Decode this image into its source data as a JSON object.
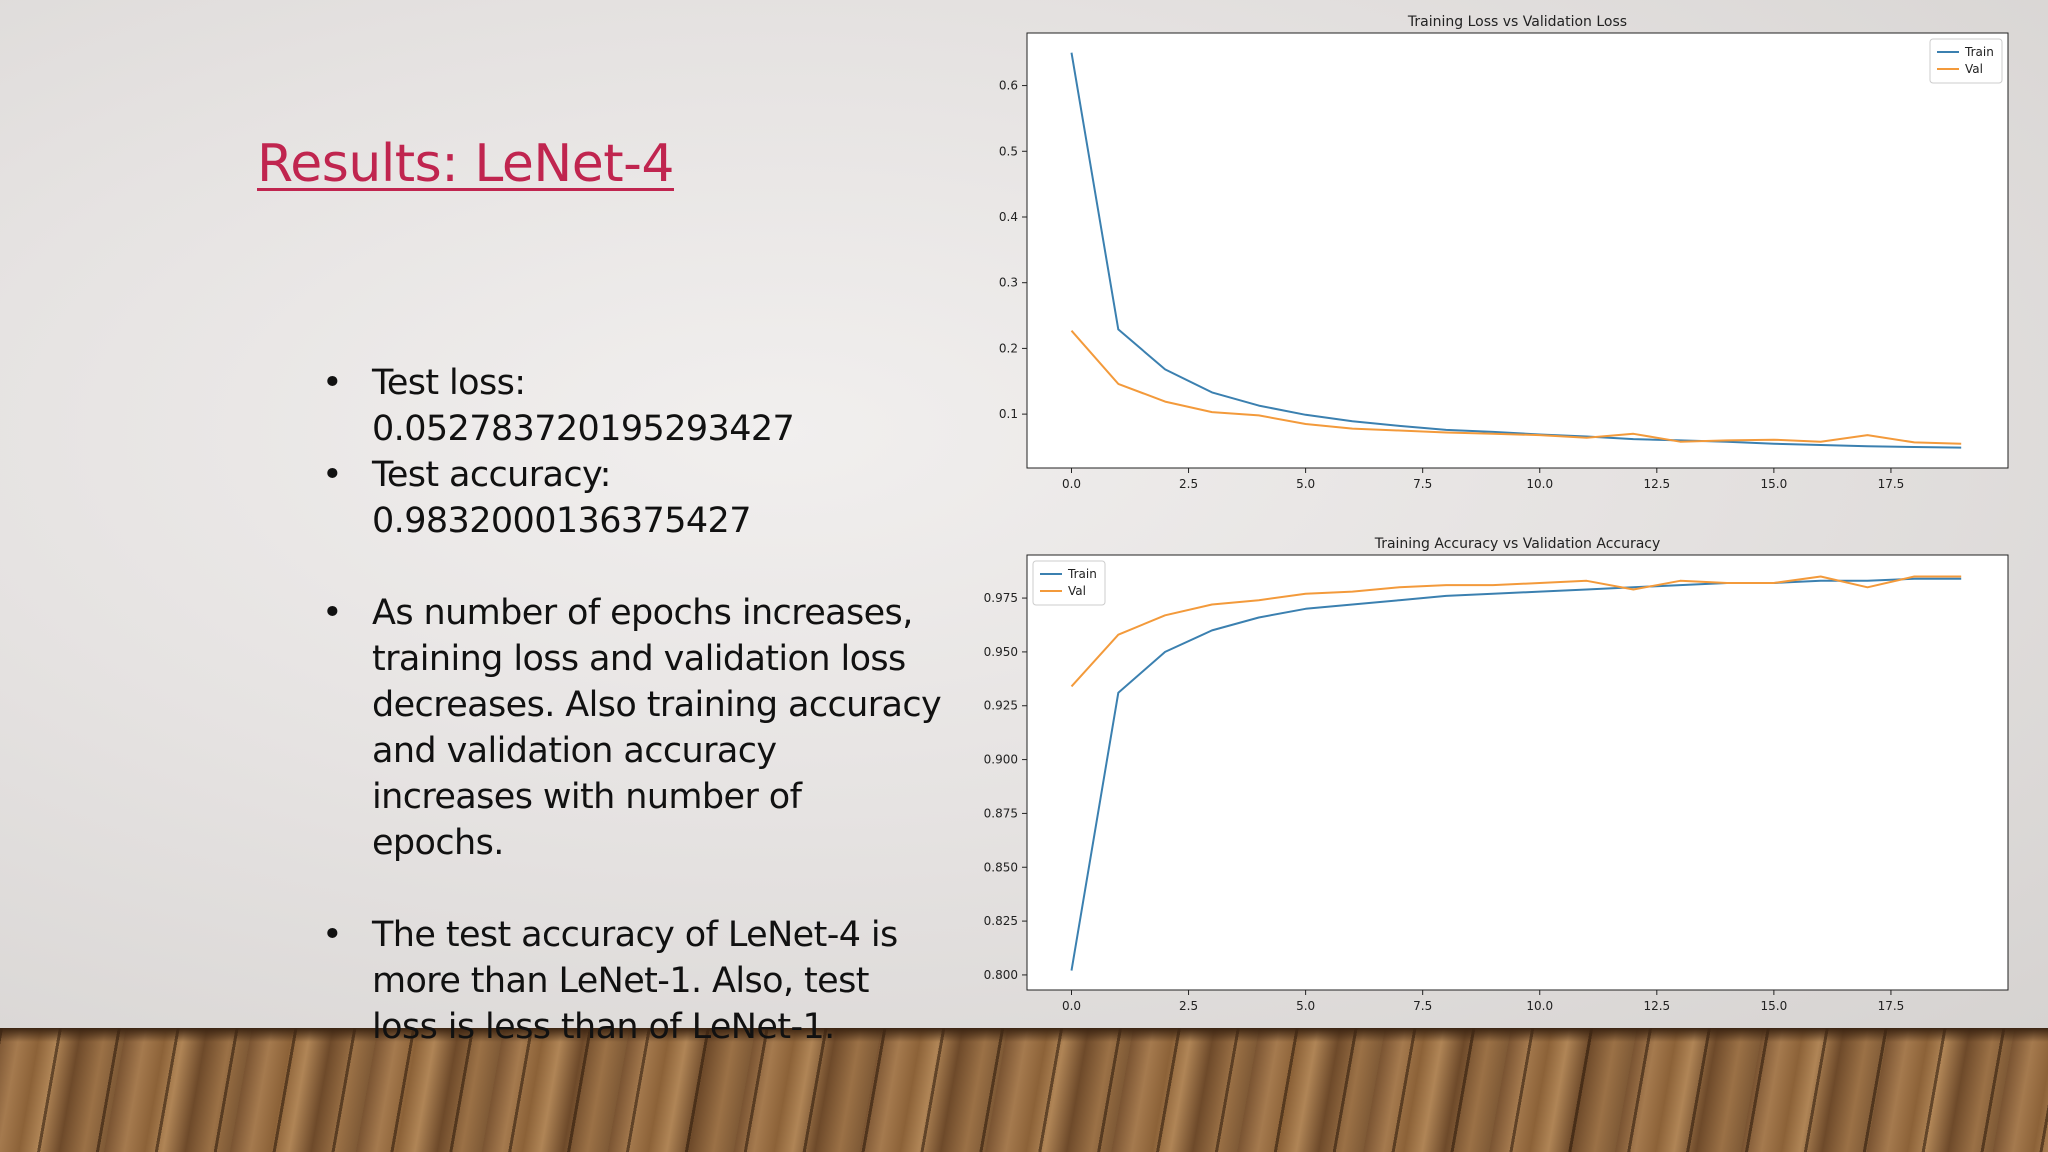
{
  "slide": {
    "title": "Results: LeNet-4",
    "bullets": [
      "Test loss: 0.052783720195293427",
      "Test accuracy: 0.9832000136375427",
      "As number of epochs increases, training loss and validation loss decreases. Also training accuracy and validation accuracy increases with number of epochs.",
      "The test accuracy of LeNet-4 is more than LeNet-1. Also, test loss is less than of LeNet-1."
    ],
    "bullet_char": "•"
  },
  "colors": {
    "title": "#c0254f",
    "train": "#3b80b0",
    "val": "#f39a3b"
  },
  "chart_data": [
    {
      "type": "line",
      "title": "Training Loss vs Validation Loss",
      "xlabel": "",
      "ylabel": "",
      "x": [
        0,
        1,
        2,
        3,
        4,
        5,
        6,
        7,
        8,
        9,
        10,
        11,
        12,
        13,
        14,
        15,
        16,
        17,
        18,
        19
      ],
      "xticks": [
        0.0,
        2.5,
        5.0,
        7.5,
        10.0,
        12.5,
        15.0,
        17.5
      ],
      "xtick_labels": [
        "0.0",
        "2.5",
        "5.0",
        "7.5",
        "10.0",
        "12.5",
        "15.0",
        "17.5"
      ],
      "yticks": [
        0.1,
        0.2,
        0.3,
        0.4,
        0.5,
        0.6
      ],
      "ytick_labels": [
        "0.1",
        "0.2",
        "0.3",
        "0.4",
        "0.5",
        "0.6"
      ],
      "xlim": [
        -0.95,
        20.0
      ],
      "ylim": [
        0.018,
        0.68
      ],
      "legend": "top-right",
      "grid": false,
      "series": [
        {
          "name": "Train",
          "color": "#3b80b0",
          "values": [
            0.65,
            0.229,
            0.168,
            0.133,
            0.113,
            0.099,
            0.089,
            0.082,
            0.076,
            0.073,
            0.069,
            0.066,
            0.062,
            0.06,
            0.058,
            0.055,
            0.053,
            0.051,
            0.05,
            0.049
          ]
        },
        {
          "name": "Val",
          "color": "#f39a3b",
          "values": [
            0.227,
            0.146,
            0.119,
            0.103,
            0.098,
            0.085,
            0.078,
            0.075,
            0.072,
            0.07,
            0.068,
            0.064,
            0.07,
            0.058,
            0.06,
            0.061,
            0.058,
            0.068,
            0.057,
            0.055
          ]
        }
      ]
    },
    {
      "type": "line",
      "title": "Training Accuracy vs Validation Accuracy",
      "xlabel": "",
      "ylabel": "",
      "x": [
        0,
        1,
        2,
        3,
        4,
        5,
        6,
        7,
        8,
        9,
        10,
        11,
        12,
        13,
        14,
        15,
        16,
        17,
        18,
        19
      ],
      "xticks": [
        0.0,
        2.5,
        5.0,
        7.5,
        10.0,
        12.5,
        15.0,
        17.5
      ],
      "xtick_labels": [
        "0.0",
        "2.5",
        "5.0",
        "7.5",
        "10.0",
        "12.5",
        "15.0",
        "17.5"
      ],
      "yticks": [
        0.8,
        0.825,
        0.85,
        0.875,
        0.9,
        0.925,
        0.95,
        0.975
      ],
      "ytick_labels": [
        "0.800",
        "0.825",
        "0.850",
        "0.875",
        "0.900",
        "0.925",
        "0.950",
        "0.975"
      ],
      "xlim": [
        -0.95,
        20.0
      ],
      "ylim": [
        0.793,
        0.995
      ],
      "legend": "top-left",
      "grid": false,
      "series": [
        {
          "name": "Train",
          "color": "#3b80b0",
          "values": [
            0.802,
            0.931,
            0.95,
            0.96,
            0.966,
            0.97,
            0.972,
            0.974,
            0.976,
            0.977,
            0.978,
            0.979,
            0.98,
            0.981,
            0.982,
            0.982,
            0.983,
            0.983,
            0.984,
            0.984
          ]
        },
        {
          "name": "Val",
          "color": "#f39a3b",
          "values": [
            0.934,
            0.958,
            0.967,
            0.972,
            0.974,
            0.977,
            0.978,
            0.98,
            0.981,
            0.981,
            0.982,
            0.983,
            0.979,
            0.983,
            0.982,
            0.982,
            0.985,
            0.98,
            0.985,
            0.985
          ]
        }
      ]
    }
  ]
}
